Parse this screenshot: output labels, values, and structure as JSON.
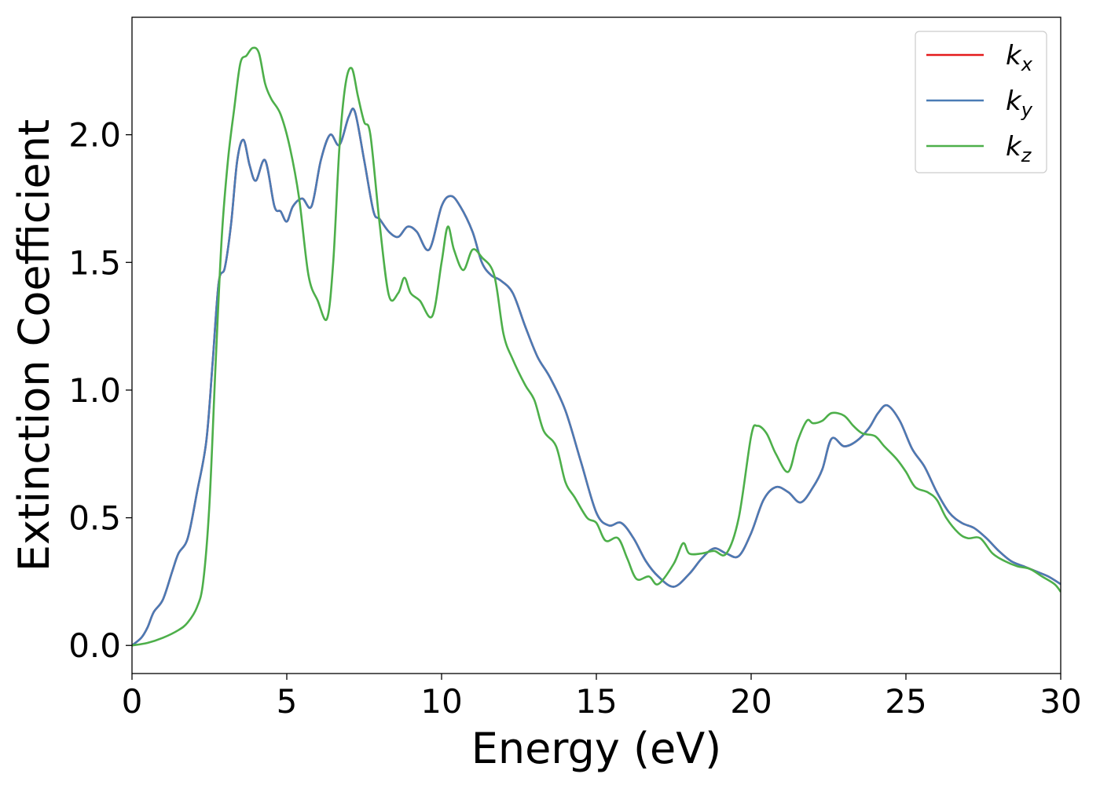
{
  "chart_data": {
    "type": "line",
    "title": "",
    "xlabel": "Energy (eV)",
    "ylabel": "Extinction Coefficient",
    "xlim": [
      0,
      30
    ],
    "ylim": [
      -0.11,
      2.46
    ],
    "xticks": [
      0,
      5,
      10,
      15,
      20,
      25,
      30
    ],
    "xtick_labels": [
      "0",
      "5",
      "10",
      "15",
      "20",
      "25",
      "30"
    ],
    "yticks": [
      0.0,
      0.5,
      1.0,
      1.5,
      2.0
    ],
    "ytick_labels": [
      "0.0",
      "0.5",
      "1.0",
      "1.5",
      "2.0"
    ],
    "grid": false,
    "legend_position": "top-right",
    "colors": {
      "kx": "#e41a1c",
      "ky": "#4a7bb5",
      "kz": "#4daf4a"
    },
    "series": [
      {
        "key": "kx",
        "name_main": "k",
        "name_sub": "x",
        "x": [
          0,
          0.3,
          0.5,
          0.7,
          1.0,
          1.3,
          1.5,
          1.8,
          2.1,
          2.4,
          2.6,
          2.8,
          3.0,
          3.2,
          3.4,
          3.6,
          3.8,
          4.0,
          4.3,
          4.6,
          4.8,
          5.0,
          5.2,
          5.5,
          5.8,
          6.1,
          6.4,
          6.7,
          7.0,
          7.2,
          7.5,
          7.8,
          8.0,
          8.3,
          8.6,
          8.9,
          9.2,
          9.6,
          10.0,
          10.3,
          10.6,
          11.0,
          11.3,
          11.6,
          11.9,
          12.3,
          12.7,
          13.1,
          13.5,
          14.0,
          14.5,
          15.0,
          15.4,
          15.8,
          16.2,
          16.6,
          17.0,
          17.5,
          18.0,
          18.4,
          18.8,
          19.2,
          19.6,
          20.0,
          20.4,
          20.8,
          21.2,
          21.6,
          22.0,
          22.3,
          22.6,
          23.0,
          23.4,
          23.8,
          24.1,
          24.4,
          24.8,
          25.2,
          25.6,
          26.0,
          26.4,
          26.8,
          27.2,
          27.6,
          28.0,
          28.4,
          28.8,
          29.2,
          29.6,
          30.0
        ],
        "y": [
          0.0,
          0.03,
          0.07,
          0.13,
          0.18,
          0.29,
          0.36,
          0.42,
          0.6,
          0.8,
          1.1,
          1.42,
          1.48,
          1.65,
          1.9,
          1.98,
          1.88,
          1.82,
          1.9,
          1.72,
          1.7,
          1.66,
          1.72,
          1.75,
          1.72,
          1.9,
          2.0,
          1.96,
          2.07,
          2.09,
          1.9,
          1.7,
          1.67,
          1.62,
          1.6,
          1.64,
          1.62,
          1.55,
          1.72,
          1.76,
          1.72,
          1.62,
          1.5,
          1.45,
          1.43,
          1.38,
          1.25,
          1.13,
          1.05,
          0.92,
          0.72,
          0.52,
          0.47,
          0.48,
          0.42,
          0.33,
          0.27,
          0.23,
          0.28,
          0.34,
          0.38,
          0.36,
          0.35,
          0.44,
          0.57,
          0.62,
          0.6,
          0.56,
          0.62,
          0.69,
          0.81,
          0.78,
          0.8,
          0.85,
          0.91,
          0.94,
          0.88,
          0.77,
          0.7,
          0.6,
          0.52,
          0.48,
          0.46,
          0.42,
          0.37,
          0.33,
          0.31,
          0.29,
          0.27,
          0.24
        ]
      },
      {
        "key": "ky",
        "name_main": "k",
        "name_sub": "y",
        "x": [
          0,
          0.3,
          0.5,
          0.7,
          1.0,
          1.3,
          1.5,
          1.8,
          2.1,
          2.4,
          2.6,
          2.8,
          3.0,
          3.2,
          3.4,
          3.6,
          3.8,
          4.0,
          4.3,
          4.6,
          4.8,
          5.0,
          5.2,
          5.5,
          5.8,
          6.1,
          6.4,
          6.7,
          7.0,
          7.2,
          7.5,
          7.8,
          8.0,
          8.3,
          8.6,
          8.9,
          9.2,
          9.6,
          10.0,
          10.3,
          10.6,
          11.0,
          11.3,
          11.6,
          11.9,
          12.3,
          12.7,
          13.1,
          13.5,
          14.0,
          14.5,
          15.0,
          15.4,
          15.8,
          16.2,
          16.6,
          17.0,
          17.5,
          18.0,
          18.4,
          18.8,
          19.2,
          19.6,
          20.0,
          20.4,
          20.8,
          21.2,
          21.6,
          22.0,
          22.3,
          22.6,
          23.0,
          23.4,
          23.8,
          24.1,
          24.4,
          24.8,
          25.2,
          25.6,
          26.0,
          26.4,
          26.8,
          27.2,
          27.6,
          28.0,
          28.4,
          28.8,
          29.2,
          29.6,
          30.0
        ],
        "y": [
          0.0,
          0.03,
          0.07,
          0.13,
          0.18,
          0.29,
          0.36,
          0.42,
          0.6,
          0.8,
          1.1,
          1.42,
          1.48,
          1.65,
          1.9,
          1.98,
          1.88,
          1.82,
          1.9,
          1.72,
          1.7,
          1.66,
          1.72,
          1.75,
          1.72,
          1.9,
          2.0,
          1.96,
          2.07,
          2.09,
          1.9,
          1.7,
          1.67,
          1.62,
          1.6,
          1.64,
          1.62,
          1.55,
          1.72,
          1.76,
          1.72,
          1.62,
          1.5,
          1.45,
          1.43,
          1.38,
          1.25,
          1.13,
          1.05,
          0.92,
          0.72,
          0.52,
          0.47,
          0.48,
          0.42,
          0.33,
          0.27,
          0.23,
          0.28,
          0.34,
          0.38,
          0.36,
          0.35,
          0.44,
          0.57,
          0.62,
          0.6,
          0.56,
          0.62,
          0.69,
          0.81,
          0.78,
          0.8,
          0.85,
          0.91,
          0.94,
          0.88,
          0.77,
          0.7,
          0.6,
          0.52,
          0.48,
          0.46,
          0.42,
          0.37,
          0.33,
          0.31,
          0.29,
          0.27,
          0.24
        ]
      },
      {
        "key": "kz",
        "name_main": "k",
        "name_sub": "z",
        "x": [
          0,
          0.5,
          1.0,
          1.5,
          1.8,
          2.1,
          2.3,
          2.5,
          2.7,
          2.9,
          3.1,
          3.3,
          3.5,
          3.7,
          3.9,
          4.1,
          4.3,
          4.5,
          4.8,
          5.1,
          5.4,
          5.7,
          6.0,
          6.3,
          6.5,
          6.7,
          6.9,
          7.1,
          7.3,
          7.5,
          7.7,
          8.0,
          8.3,
          8.6,
          8.8,
          9.0,
          9.3,
          9.7,
          10.0,
          10.2,
          10.4,
          10.7,
          11.0,
          11.3,
          11.7,
          12.0,
          12.3,
          12.7,
          13.0,
          13.3,
          13.7,
          14.0,
          14.3,
          14.7,
          15.0,
          15.3,
          15.7,
          16.0,
          16.3,
          16.7,
          17.0,
          17.5,
          17.8,
          18.0,
          18.4,
          18.8,
          19.2,
          19.6,
          20.0,
          20.2,
          20.5,
          20.8,
          21.2,
          21.5,
          21.8,
          22.0,
          22.3,
          22.6,
          23.0,
          23.3,
          23.6,
          24.0,
          24.3,
          24.7,
          25.0,
          25.3,
          25.7,
          26.0,
          26.3,
          26.7,
          27.0,
          27.4,
          27.8,
          28.2,
          28.6,
          29.0,
          29.4,
          29.8,
          30.0
        ],
        "y": [
          0.0,
          0.01,
          0.03,
          0.06,
          0.09,
          0.15,
          0.25,
          0.55,
          1.1,
          1.6,
          1.9,
          2.1,
          2.28,
          2.31,
          2.34,
          2.32,
          2.2,
          2.14,
          2.08,
          1.95,
          1.75,
          1.45,
          1.35,
          1.28,
          1.5,
          1.95,
          2.2,
          2.26,
          2.15,
          2.05,
          2.0,
          1.65,
          1.37,
          1.38,
          1.44,
          1.38,
          1.35,
          1.29,
          1.5,
          1.64,
          1.55,
          1.47,
          1.55,
          1.52,
          1.45,
          1.22,
          1.12,
          1.02,
          0.96,
          0.84,
          0.78,
          0.64,
          0.58,
          0.5,
          0.48,
          0.41,
          0.42,
          0.34,
          0.26,
          0.27,
          0.24,
          0.32,
          0.4,
          0.36,
          0.36,
          0.37,
          0.36,
          0.5,
          0.82,
          0.86,
          0.83,
          0.75,
          0.68,
          0.8,
          0.88,
          0.87,
          0.88,
          0.91,
          0.9,
          0.86,
          0.83,
          0.82,
          0.78,
          0.73,
          0.68,
          0.62,
          0.6,
          0.57,
          0.5,
          0.44,
          0.42,
          0.42,
          0.36,
          0.33,
          0.31,
          0.3,
          0.27,
          0.24,
          0.21
        ]
      }
    ]
  }
}
